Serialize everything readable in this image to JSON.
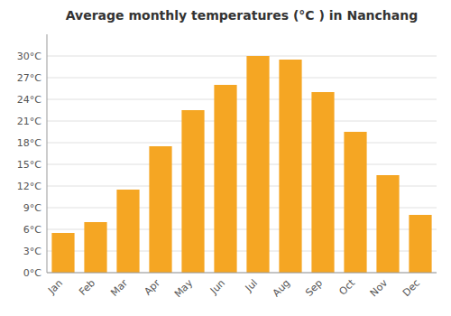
{
  "chart_data": {
    "type": "bar",
    "title": "Average monthly temperatures (°C ) in Nanchang",
    "categories": [
      "Jan",
      "Feb",
      "Mar",
      "Apr",
      "May",
      "Jun",
      "Jul",
      "Aug",
      "Sep",
      "Oct",
      "Nov",
      "Dec"
    ],
    "values": [
      5.5,
      7.0,
      11.5,
      17.5,
      22.5,
      26.0,
      30.0,
      29.5,
      25.0,
      19.5,
      13.5,
      8.0
    ],
    "color": "#F5A623",
    "ylim": [
      0,
      33
    ],
    "yticks": [
      {
        "value": 0,
        "label": "0°C"
      },
      {
        "value": 3,
        "label": "3°C"
      },
      {
        "value": 6,
        "label": "6°C"
      },
      {
        "value": 9,
        "label": "9°C"
      },
      {
        "value": 12,
        "label": "12°C"
      },
      {
        "value": 15,
        "label": "15°C"
      },
      {
        "value": 18,
        "label": "18°C"
      },
      {
        "value": 21,
        "label": "21°C"
      },
      {
        "value": 24,
        "label": "24°C"
      },
      {
        "value": 27,
        "label": "27°C"
      },
      {
        "value": 30,
        "label": "30°C"
      }
    ],
    "grid": true
  }
}
